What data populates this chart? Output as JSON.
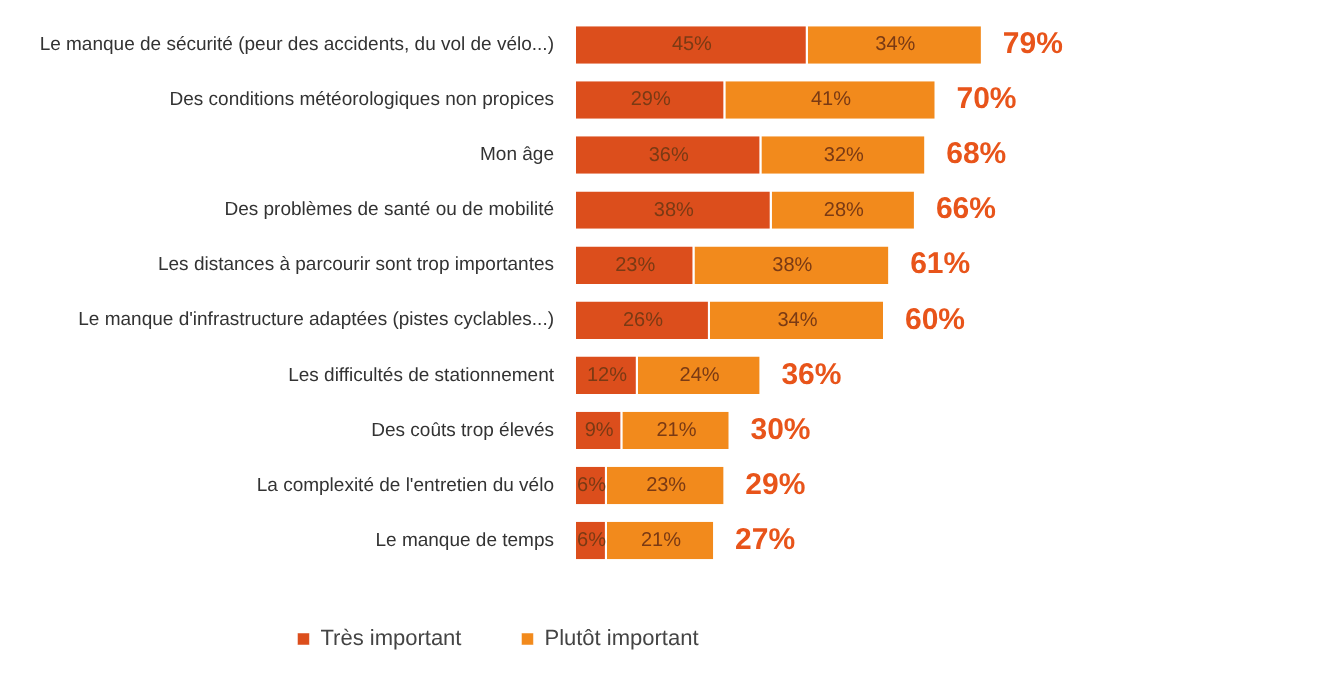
{
  "chart_data": {
    "type": "bar",
    "orientation": "horizontal",
    "stacked": true,
    "categories": [
      "Le manque de sécurité (peur des accidents, du vol de vélo...)",
      "Des conditions météorologiques non propices",
      "Mon âge",
      "Des problèmes de santé ou de mobilité",
      "Les distances à parcourir sont trop importantes",
      "Le manque d'infrastructure adaptées (pistes cyclables...)",
      "Les difficultés de stationnement",
      "Des coûts trop élevés",
      "La complexité de l'entretien du vélo",
      "Le manque de temps"
    ],
    "series": [
      {
        "name": "Très important",
        "color": "#dc4e1c",
        "values": [
          45,
          29,
          36,
          38,
          23,
          26,
          12,
          9,
          6,
          6
        ],
        "value_labels": [
          "45%",
          "29%",
          "36%",
          "38%",
          "23%",
          "26%",
          "12%",
          "9%",
          "6%",
          "6%"
        ]
      },
      {
        "name": "Plutôt important",
        "color": "#f28a1c",
        "values": [
          34,
          41,
          32,
          28,
          38,
          34,
          24,
          21,
          23,
          21
        ],
        "value_labels": [
          "34%",
          "41%",
          "32%",
          "28%",
          "38%",
          "34%",
          "24%",
          "21%",
          "23%",
          "21%"
        ]
      }
    ],
    "totals": [
      "79%",
      "70%",
      "68%",
      "66%",
      "61%",
      "60%",
      "36%",
      "30%",
      "29%",
      "27%"
    ],
    "legend": "bottom",
    "grid": false
  }
}
